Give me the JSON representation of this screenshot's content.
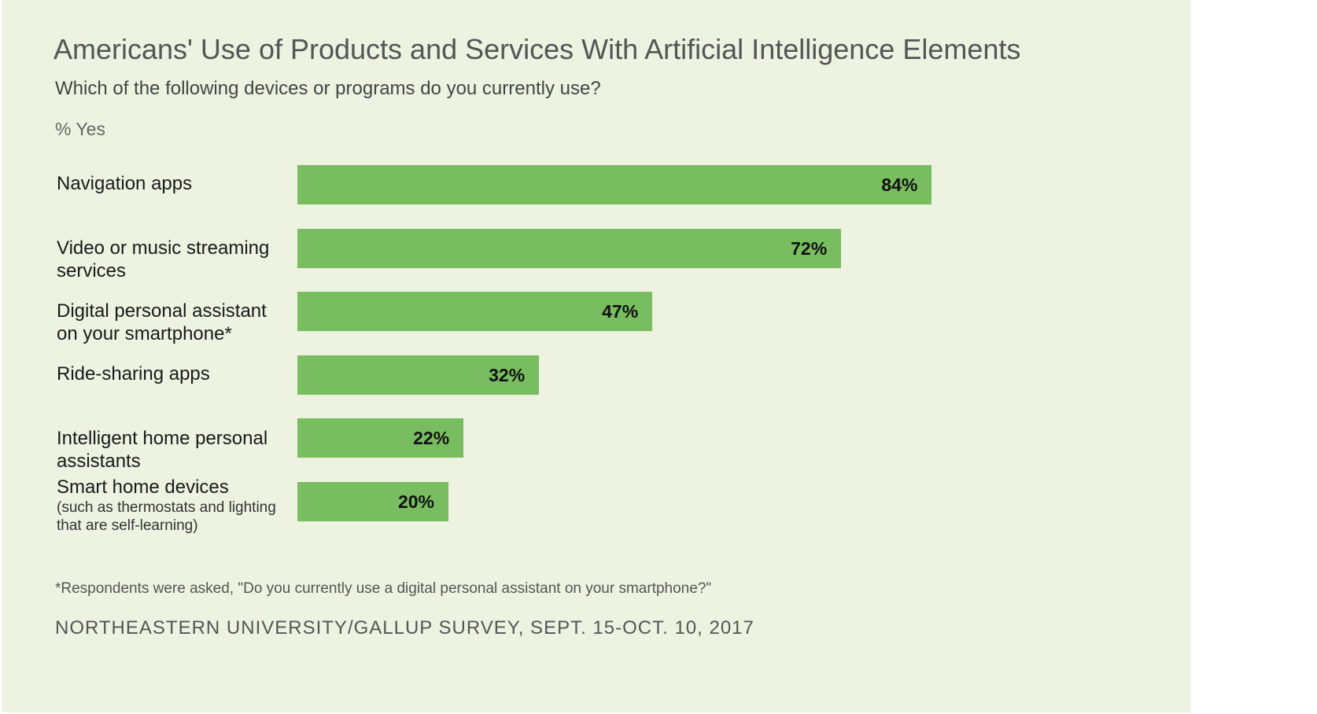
{
  "chart_data": {
    "type": "bar",
    "orientation": "horizontal",
    "title": "Americans' Use of Products and Services With Artificial Intelligence Elements",
    "subtitle": "Which of the following devices or programs do you currently use?",
    "unit_label": "% Yes",
    "categories": [
      "Navigation apps",
      "Video or music streaming services",
      "Digital personal assistant on your smartphone*",
      "Ride-sharing apps",
      "Intelligent home personal assistants",
      "Smart home devices"
    ],
    "category_notes": [
      "",
      "",
      "",
      "",
      "",
      "(such as thermostats and lighting that are self-learning)"
    ],
    "values": [
      84,
      72,
      47,
      32,
      22,
      20
    ],
    "value_labels": [
      "84%",
      "72%",
      "47%",
      "32%",
      "22%",
      "20%"
    ],
    "xlim": [
      0,
      100
    ],
    "bar_color": "#78bd5f",
    "grid": false,
    "legend": "none",
    "footnote": "*Respondents were asked, \"Do you currently use a digital personal assistant on your smartphone?\"",
    "source": "NORTHEASTERN UNIVERSITY/GALLUP SURVEY, SEPT. 15-OCT. 10, 2017"
  }
}
